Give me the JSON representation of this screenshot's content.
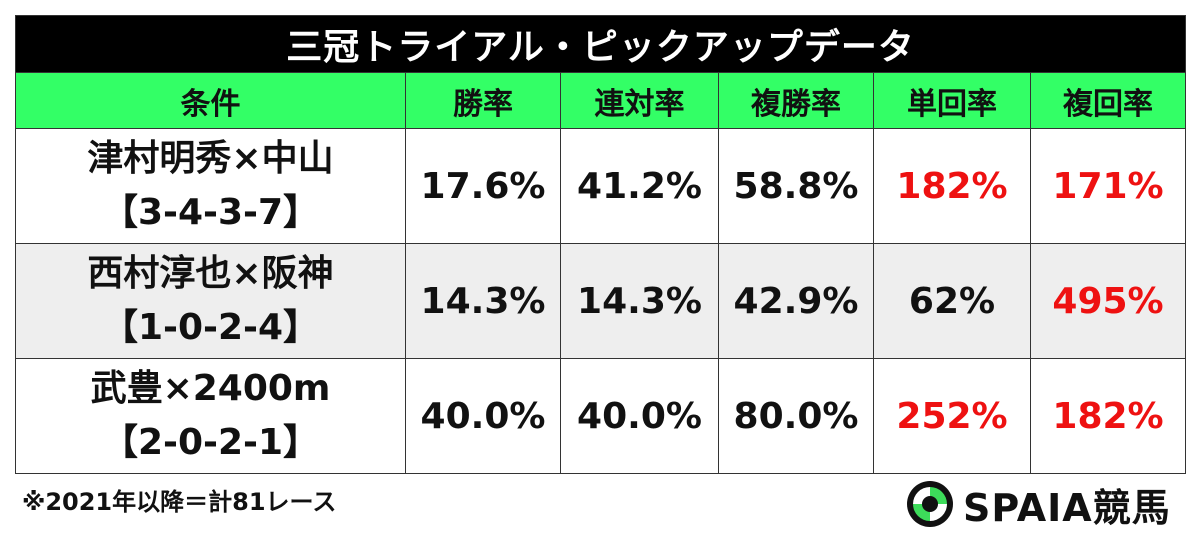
{
  "title": "三冠トライアル・ピックアップデータ",
  "table": {
    "header": [
      "条件",
      "勝率",
      "連対率",
      "複勝率",
      "単回率",
      "複回率"
    ],
    "rows": [
      {
        "condition": "津村明秀×中山",
        "record": "【3-4-3-7】",
        "cells": [
          "17.6%",
          "41.2%",
          "58.8%",
          "182%",
          "171%"
        ]
      },
      {
        "condition": "西村淳也×阪神",
        "record": "【1-0-2-4】",
        "cells": [
          "14.3%",
          "14.3%",
          "42.9%",
          "62%",
          "495%"
        ]
      },
      {
        "condition": "武豊×2400m",
        "record": "【2-0-2-1】",
        "cells": [
          "40.0%",
          "40.0%",
          "80.0%",
          "252%",
          "182%"
        ]
      }
    ]
  },
  "footnote": "※2021年以降＝計81レース",
  "logo": "SPAIA競馬"
}
